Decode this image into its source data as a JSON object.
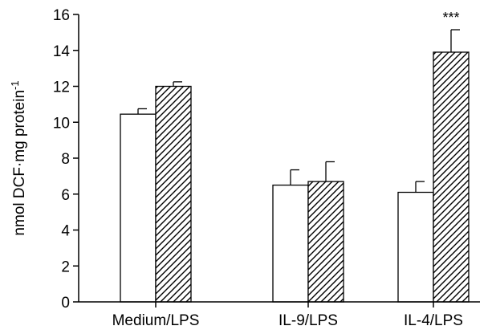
{
  "chart_data": {
    "type": "bar",
    "categories": [
      "Medium/LPS",
      "IL-9/LPS",
      "IL-4/LPS"
    ],
    "series": [
      {
        "fill": "open",
        "values": [
          10.45,
          6.5,
          6.1
        ],
        "errors": [
          0.3,
          0.85,
          0.6
        ]
      },
      {
        "fill": "hatched",
        "values": [
          12.0,
          6.7,
          13.9
        ],
        "errors": [
          0.25,
          1.1,
          1.25
        ]
      }
    ],
    "ylabel": "nmol DCF·mg protein",
    "ylabel_sup": "-1",
    "ylim": [
      0,
      16
    ],
    "yticks": [
      0,
      2,
      4,
      6,
      8,
      10,
      12,
      14,
      16
    ],
    "annotations": [
      {
        "category": "IL-4/LPS",
        "series": 1,
        "text": "***"
      }
    ],
    "grid": false,
    "colors": {
      "axis": "#000000",
      "bar_fill": "#ffffff",
      "hatch": "#000000"
    }
  }
}
